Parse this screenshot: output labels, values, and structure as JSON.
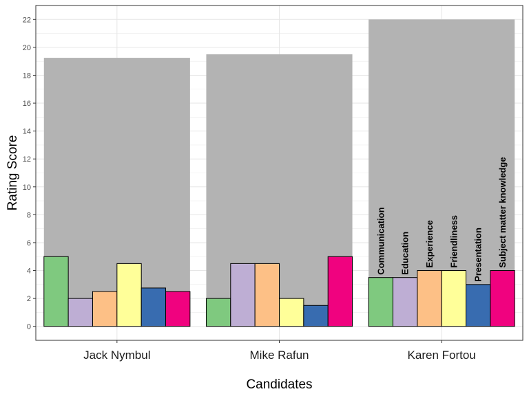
{
  "chart_data": {
    "type": "bar",
    "xlabel": "Candidates",
    "ylabel": "Rating Score",
    "ylim": [
      -1,
      23
    ],
    "y_ticks": [
      "0",
      "2",
      "4",
      "6",
      "8",
      "10",
      "12",
      "14",
      "16",
      "18",
      "20",
      "22"
    ],
    "grid": true,
    "legend": "none",
    "categories": [
      "Jack Nymbul",
      "Mike Rafun",
      "Karen Fortou"
    ],
    "totals": [
      19.25,
      19.5,
      22
    ],
    "total_color": "#b3b3b3",
    "series": [
      {
        "name": "Communication",
        "color": "#7fc97f",
        "values": [
          5,
          2,
          3.5
        ]
      },
      {
        "name": "Education",
        "color": "#beaed4",
        "values": [
          2,
          4.5,
          3.5
        ]
      },
      {
        "name": "Experience",
        "color": "#fdc086",
        "values": [
          2.5,
          4.5,
          4
        ]
      },
      {
        "name": "Friendliness",
        "color": "#ffff99",
        "values": [
          4.5,
          2,
          4
        ]
      },
      {
        "name": "Presentation",
        "color": "#386cb0",
        "values": [
          2.75,
          1.5,
          3
        ]
      },
      {
        "name": "Subject matter knowledge",
        "color": "#f0027f",
        "values": [
          2.5,
          5,
          4
        ]
      }
    ],
    "labeled_category": "Karen Fortou"
  }
}
